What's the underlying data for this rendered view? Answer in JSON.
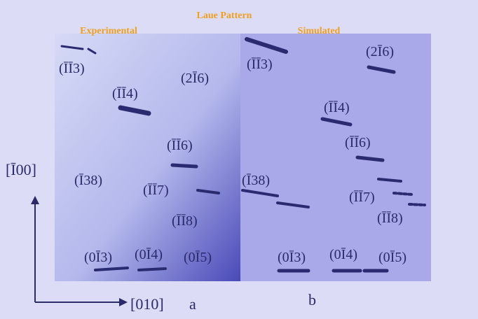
{
  "title": "Laue Pattern",
  "panels": [
    {
      "name": "Experimental",
      "label": "a",
      "spots": [
        "(ĪĪ3)",
        "(ĪĪ4)",
        "(2Ī6)",
        "(ĪĪ6)",
        "(Ī38)",
        "(ĪĪ7)",
        "(ĪĪ8)",
        "(0Ī3)",
        "(0Ī4)",
        "(0Ī5)"
      ]
    },
    {
      "name": "Simulated",
      "label": "b",
      "spots": [
        "(ĪĪ3)",
        "(2Ī6)",
        "(ĪĪ4)",
        "(ĪĪ6)",
        "(Ī38)",
        "(ĪĪ7)",
        "(ĪĪ8)",
        "(0Ī3)",
        "(0Ī4)",
        "(0Ī5)"
      ]
    }
  ],
  "axes": {
    "vertical": "[Ī00]",
    "horizontal": "[010]"
  }
}
